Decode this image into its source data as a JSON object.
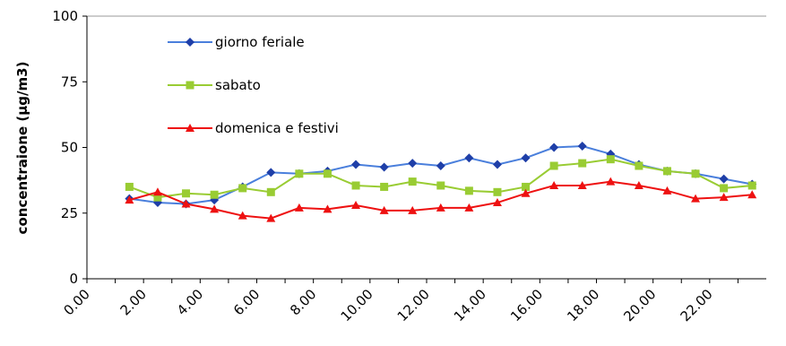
{
  "chart_data": {
    "type": "line",
    "ylabel": "concentraione (µg/m3)",
    "categories": [
      "0.00",
      null,
      "2.00",
      null,
      "4.00",
      null,
      "6.00",
      null,
      "8.00",
      null,
      "10.00",
      null,
      "12.00",
      null,
      "14.00",
      null,
      "16.00",
      null,
      "18.00",
      null,
      "20.00",
      null,
      "22.00",
      null
    ],
    "series": [
      {
        "name": "giorno feriale",
        "color": "#1f3fa8",
        "line": "#4a7fdc",
        "marker": "diamond",
        "values": [
          null,
          30.5,
          29,
          28.5,
          30,
          35,
          40.5,
          40,
          41,
          43.5,
          42.5,
          44,
          43,
          46,
          43.5,
          46,
          50,
          50.5,
          47.5,
          43.5,
          41,
          40,
          38,
          36
        ]
      },
      {
        "name": "sabato",
        "color": "#99cc33",
        "line": "#99cc33",
        "marker": "square",
        "values": [
          null,
          35,
          31,
          32.5,
          32,
          34.5,
          33,
          40,
          40,
          35.5,
          35,
          37,
          35.5,
          33.5,
          33,
          35,
          43,
          44,
          45.5,
          43,
          41,
          40,
          34.5,
          35.5
        ]
      },
      {
        "name": "domenica e festivi",
        "color": "#ee1111",
        "line": "#ee1111",
        "marker": "triangle",
        "values": [
          null,
          30,
          33,
          28.5,
          26.5,
          24,
          23,
          27,
          26.5,
          28,
          26,
          26,
          27,
          27,
          29,
          32.5,
          35.5,
          35.5,
          37,
          35.5,
          33.5,
          30.5,
          31,
          32
        ]
      }
    ],
    "ylim": [
      0,
      100
    ],
    "yticks": [
      0,
      25,
      50,
      75,
      100
    ]
  }
}
